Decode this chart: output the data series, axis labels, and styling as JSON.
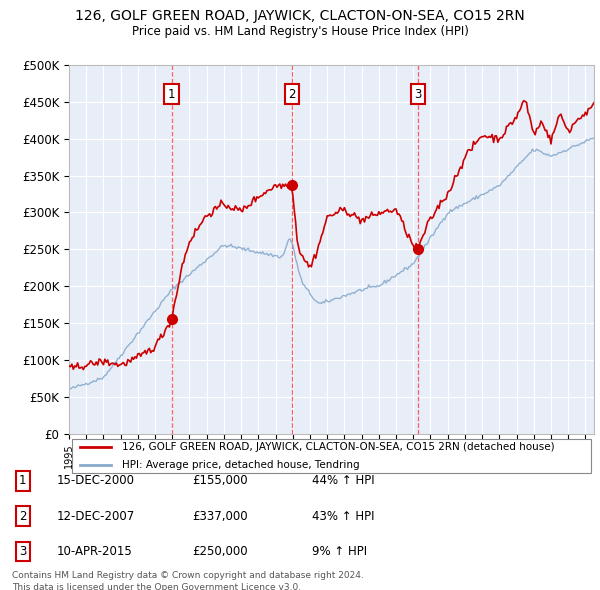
{
  "title": "126, GOLF GREEN ROAD, JAYWICK, CLACTON-ON-SEA, CO15 2RN",
  "subtitle": "Price paid vs. HM Land Registry's House Price Index (HPI)",
  "sale_dates_float": [
    2000.96,
    2007.96,
    2015.27
  ],
  "sale_prices": [
    155000,
    337000,
    250000
  ],
  "sale_label_nums": [
    "1",
    "2",
    "3"
  ],
  "legend_line1": "126, GOLF GREEN ROAD, JAYWICK, CLACTON-ON-SEA, CO15 2RN (detached house)",
  "legend_line2": "HPI: Average price, detached house, Tendring",
  "table_rows": [
    [
      "1",
      "15-DEC-2000",
      "£155,000",
      "44% ↑ HPI"
    ],
    [
      "2",
      "12-DEC-2007",
      "£337,000",
      "43% ↑ HPI"
    ],
    [
      "3",
      "10-APR-2015",
      "£250,000",
      "9% ↑ HPI"
    ]
  ],
  "footnote1": "Contains HM Land Registry data © Crown copyright and database right 2024.",
  "footnote2": "This data is licensed under the Open Government Licence v3.0.",
  "price_line_color": "#cc0000",
  "hpi_line_color": "#88aacc",
  "background_color": "#e8eef8",
  "ylim": [
    0,
    500000
  ],
  "yticks": [
    0,
    50000,
    100000,
    150000,
    200000,
    250000,
    300000,
    350000,
    400000,
    450000,
    500000
  ]
}
